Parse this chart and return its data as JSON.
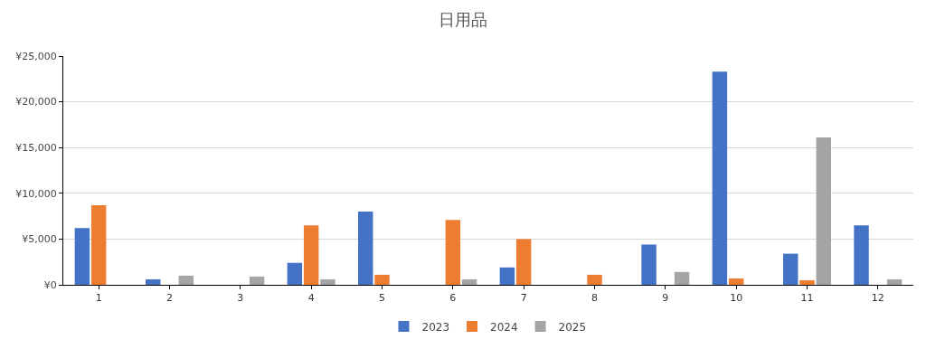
{
  "chart_data": {
    "type": "bar",
    "title": "日用品",
    "categories": [
      "1",
      "2",
      "3",
      "4",
      "5",
      "6",
      "7",
      "8",
      "9",
      "10",
      "11",
      "12"
    ],
    "series": [
      {
        "name": "2023",
        "color": "#4472c4",
        "values": [
          6200,
          600,
          null,
          2400,
          8000,
          null,
          1900,
          null,
          4400,
          23300,
          3400,
          6500
        ]
      },
      {
        "name": "2024",
        "color": "#ed7d31",
        "values": [
          8700,
          null,
          null,
          6500,
          1100,
          7100,
          5000,
          1100,
          null,
          700,
          500,
          null
        ]
      },
      {
        "name": "2025",
        "color": "#a5a5a5",
        "values": [
          null,
          1000,
          900,
          600,
          null,
          600,
          null,
          null,
          1400,
          null,
          16100,
          600
        ]
      }
    ],
    "ylim": [
      0,
      25000
    ],
    "yticks": [
      {
        "value": 0,
        "label": "¥0"
      },
      {
        "value": 5000,
        "label": "¥5,000"
      },
      {
        "value": 10000,
        "label": "¥10,000"
      },
      {
        "value": 15000,
        "label": "¥15,000"
      },
      {
        "value": 20000,
        "label": "¥20,000"
      },
      {
        "value": 25000,
        "label": "¥25,000"
      }
    ],
    "grid": "y",
    "legend": "bottom"
  }
}
